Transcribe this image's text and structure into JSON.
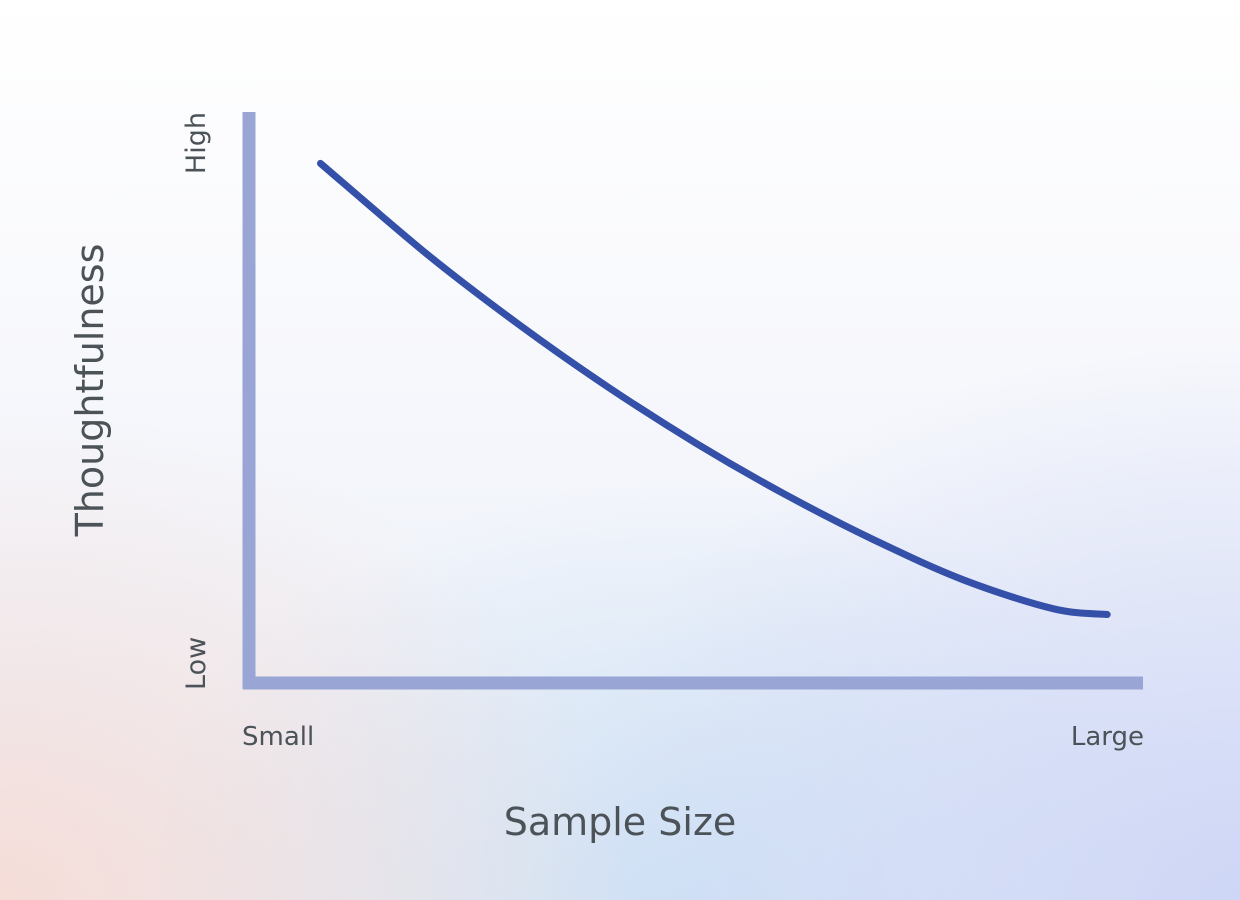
{
  "chart_data": {
    "type": "line",
    "xlabel": "Sample Size",
    "ylabel": "Thoughtfulness",
    "x_tick_labels": [
      "Small",
      "Large"
    ],
    "y_tick_labels": [
      "Low",
      "High"
    ],
    "xlim": [
      0,
      1
    ],
    "ylim": [
      0,
      1
    ],
    "grid": false,
    "legend": "none",
    "series": [
      {
        "color": "#3450a8",
        "x": [
          0.08,
          0.2,
          0.3,
          0.4,
          0.5,
          0.6,
          0.7,
          0.8,
          0.9,
          0.96
        ],
        "y": [
          0.91,
          0.75,
          0.63,
          0.52,
          0.42,
          0.33,
          0.25,
          0.18,
          0.13,
          0.12
        ]
      }
    ],
    "colors": {
      "axis": "#98a5d5",
      "line": "#3450a8",
      "text": "#4c5358"
    }
  }
}
